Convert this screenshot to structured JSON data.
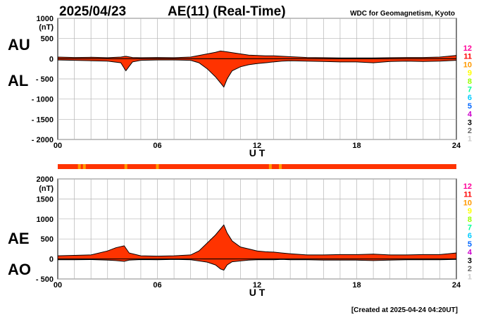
{
  "header": {
    "date": "2025/04/23",
    "title": "AE(11) (Real-Time)",
    "source": "WDC for Geomagnetism, Kyoto"
  },
  "footer": {
    "created": "[Created at 2025-04-24 04:20UT]"
  },
  "colors": {
    "fill": "#ff3300",
    "outline": "#000000",
    "grid": "#b4b4b4",
    "scale": [
      "#ff0099",
      "#ff0000",
      "#ff9900",
      "#ffff00",
      "#99ff00",
      "#00ff99",
      "#00ccff",
      "#0066ff",
      "#3300cc",
      "#cc00cc",
      "#000000",
      "#666666",
      "#cccccc"
    ]
  },
  "station_scale": {
    "labels": [
      "12",
      "11",
      "10",
      "9",
      "8",
      "7",
      "6",
      "5",
      "4",
      "3",
      "2",
      "1"
    ],
    "colors": [
      "#ff0099",
      "#ff0000",
      "#ff9900",
      "#ffff00",
      "#99ff00",
      "#00ff99",
      "#00ccff",
      "#0066ff",
      "#cc00cc",
      "#000000",
      "#666666",
      "#cccccc"
    ]
  },
  "status_bar": {
    "base": "#ff3300",
    "hours_with_10_stations": [
      1.3,
      1.6,
      4.1,
      6.0,
      12.8,
      13.4
    ]
  },
  "chart_data": [
    {
      "type": "area",
      "upper_label": "AU",
      "lower_label": "AL",
      "ylabel": "(nT)",
      "xlabel": "U T",
      "ylim": [
        -2000,
        1000
      ],
      "yticks": [
        1000,
        500,
        0,
        -500,
        -1000,
        -1500,
        -2000
      ],
      "ytick_labels": [
        "1000",
        "500",
        "0",
        "- 500",
        "- 1000",
        "- 1500",
        "- 2000"
      ],
      "xlim": [
        0,
        24
      ],
      "xtick_labels": [
        "00",
        "06",
        "12",
        "18",
        "24"
      ],
      "x": [
        0,
        1,
        2,
        3,
        3.8,
        4.1,
        4.5,
        5,
        6,
        7,
        8,
        8.5,
        9,
        9.5,
        9.8,
        10,
        10.2,
        10.5,
        11,
        11.5,
        12,
        12.5,
        13,
        13.5,
        14,
        15,
        16,
        17,
        18,
        19,
        20,
        21,
        22,
        23,
        24
      ],
      "series": [
        {
          "values": [
            40,
            30,
            35,
            25,
            40,
            60,
            30,
            25,
            30,
            25,
            40,
            80,
            120,
            160,
            190,
            180,
            170,
            150,
            120,
            90,
            80,
            70,
            70,
            60,
            50,
            30,
            25,
            20,
            20,
            20,
            25,
            30,
            30,
            40,
            80
          ]
        },
        {
          "values": [
            -30,
            -40,
            -50,
            -60,
            -100,
            -300,
            -80,
            -40,
            -30,
            -30,
            -40,
            -100,
            -250,
            -450,
            -600,
            -700,
            -500,
            -300,
            -200,
            -150,
            -120,
            -100,
            -80,
            -60,
            -50,
            -60,
            -70,
            -80,
            -80,
            -100,
            -70,
            -60,
            -70,
            -60,
            -40
          ]
        }
      ]
    },
    {
      "type": "area",
      "upper_label": "AE",
      "lower_label": "AO",
      "ylabel": "(nT)",
      "xlabel": "U T",
      "ylim": [
        -500,
        2000
      ],
      "yticks": [
        2000,
        1500,
        1000,
        500,
        0,
        -500
      ],
      "ytick_labels": [
        "2000",
        "1500",
        "1000",
        "500",
        "0",
        "- 500"
      ],
      "xlim": [
        0,
        24
      ],
      "xtick_labels": [
        "00",
        "06",
        "12",
        "18",
        "24"
      ],
      "x": [
        0,
        1,
        2,
        3,
        3.5,
        4,
        4.3,
        5,
        6,
        7,
        8,
        8.5,
        9,
        9.5,
        9.8,
        10,
        10.2,
        10.5,
        11,
        11.5,
        12,
        12.5,
        13,
        13.5,
        14,
        15,
        16,
        17,
        18,
        19,
        20,
        21,
        22,
        23,
        24
      ],
      "series": [
        {
          "values": [
            80,
            90,
            100,
            200,
            280,
            330,
            150,
            80,
            70,
            80,
            100,
            200,
            400,
            600,
            750,
            850,
            650,
            450,
            300,
            250,
            200,
            180,
            170,
            150,
            130,
            100,
            100,
            110,
            110,
            120,
            100,
            100,
            110,
            110,
            150
          ]
        },
        {
          "values": [
            -20,
            -20,
            -15,
            -30,
            -40,
            -60,
            -30,
            -15,
            -20,
            -10,
            -20,
            -50,
            -80,
            -150,
            -250,
            -280,
            -150,
            -70,
            -50,
            -30,
            -20,
            -20,
            -20,
            -10,
            -20,
            -20,
            -30,
            -30,
            -30,
            -40,
            -30,
            -20,
            -20,
            -20,
            -10
          ]
        }
      ]
    }
  ]
}
